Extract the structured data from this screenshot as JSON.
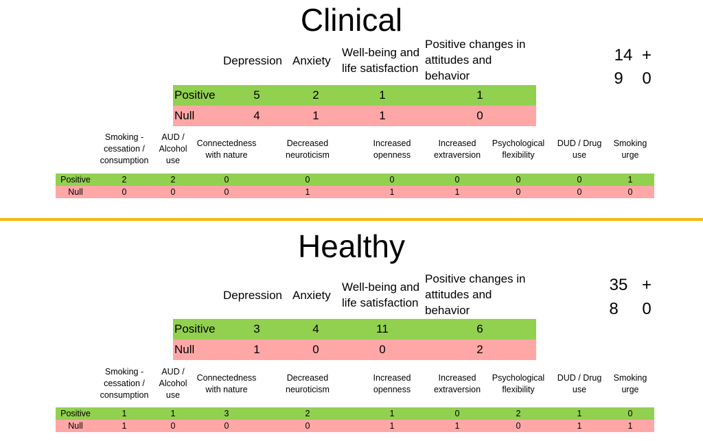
{
  "colors": {
    "positive": "#92d050",
    "null": "#ffa7a7",
    "divider": "#f2b800"
  },
  "sections": [
    {
      "title": "Clinical",
      "main": {
        "headers": [
          "Depression",
          "Anxiety",
          "Well-being and\nlife satisfaction",
          "Positive changes in\nattitudes and\nbehavior"
        ],
        "rows": [
          {
            "label": "Positive",
            "values": [
              "5",
              "2",
              "1",
              "1"
            ]
          },
          {
            "label": "Null",
            "values": [
              "4",
              "1",
              "1",
              "0"
            ]
          }
        ]
      },
      "totals": [
        "14",
        "+",
        "9",
        "0"
      ],
      "secondary": {
        "headers": [
          "Smoking -\ncessation /\nconsumption",
          "AUD /\nAlcohol\nuse",
          "Connectedness\nwith nature",
          "Decreased\nneuroticism",
          "Increased\nopenness",
          "Increased\nextraversion",
          "Psychological\nflexibility",
          "DUD / Drug\nuse",
          "Smoking\nurge"
        ],
        "rows": [
          {
            "label": "Positive",
            "values": [
              "2",
              "2",
              "0",
              "0",
              "0",
              "0",
              "0",
              "0",
              "1"
            ]
          },
          {
            "label": "Null",
            "values": [
              "0",
              "0",
              "0",
              "1",
              "1",
              "1",
              "0",
              "0",
              "0"
            ]
          }
        ]
      }
    },
    {
      "title": "Healthy",
      "main": {
        "headers": [
          "Depression",
          "Anxiety",
          "Well-being and\nlife satisfaction",
          "Positive changes in\nattitudes and\nbehavior"
        ],
        "rows": [
          {
            "label": "Positive",
            "values": [
              "3",
              "4",
              "11",
              "6"
            ]
          },
          {
            "label": "Null",
            "values": [
              "1",
              "0",
              "0",
              "2"
            ]
          }
        ]
      },
      "totals": [
        "35",
        "+",
        "8",
        "0"
      ],
      "secondary": {
        "headers": [
          "Smoking -\ncessation /\nconsumption",
          "AUD /\nAlcohol\nuse",
          "Connectedness\nwith nature",
          "Decreased\nneuroticism",
          "Increased\nopenness",
          "Increased\nextraversion",
          "Psychological\nflexibility",
          "DUD / Drug\nuse",
          "Smoking\nurge"
        ],
        "rows": [
          {
            "label": "Positive",
            "values": [
              "1",
              "1",
              "3",
              "2",
              "1",
              "0",
              "2",
              "1",
              "0"
            ]
          },
          {
            "label": "Null",
            "values": [
              "1",
              "0",
              "0",
              "0",
              "1",
              "1",
              "0",
              "1",
              "1"
            ]
          }
        ]
      }
    }
  ]
}
